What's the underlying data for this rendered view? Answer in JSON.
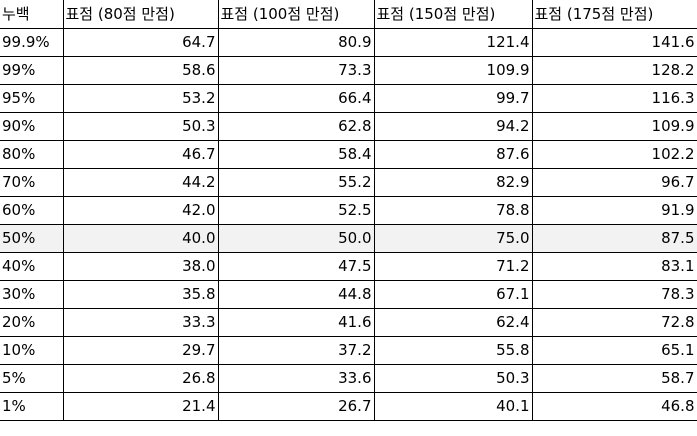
{
  "table": {
    "header": [
      "누백",
      "표점 (80점 만점)",
      "표점 (100점 만점)",
      "표점 (150점 만점)",
      "표점 (175점 만점)"
    ],
    "rows": [
      [
        "99.9%",
        "64.7",
        "80.9",
        "121.4",
        "141.6"
      ],
      [
        "99%",
        "58.6",
        "73.3",
        "109.9",
        "128.2"
      ],
      [
        "95%",
        "53.2",
        "66.4",
        "99.7",
        "116.3"
      ],
      [
        "90%",
        "50.3",
        "62.8",
        "94.2",
        "109.9"
      ],
      [
        "80%",
        "46.7",
        "58.4",
        "87.6",
        "102.2"
      ],
      [
        "70%",
        "44.2",
        "55.2",
        "82.9",
        "96.7"
      ],
      [
        "60%",
        "42.0",
        "52.5",
        "78.8",
        "91.9"
      ],
      [
        "50%",
        "40.0",
        "50.0",
        "75.0",
        "87.5"
      ],
      [
        "40%",
        "38.0",
        "47.5",
        "71.2",
        "83.1"
      ],
      [
        "30%",
        "35.8",
        "44.8",
        "67.1",
        "78.3"
      ],
      [
        "20%",
        "33.3",
        "41.6",
        "62.4",
        "72.8"
      ],
      [
        "10%",
        "29.7",
        "37.2",
        "55.8",
        "65.1"
      ],
      [
        "5%",
        "26.8",
        "33.6",
        "50.3",
        "58.7"
      ],
      [
        "1%",
        "21.4",
        "26.7",
        "40.1",
        "46.8"
      ]
    ]
  }
}
